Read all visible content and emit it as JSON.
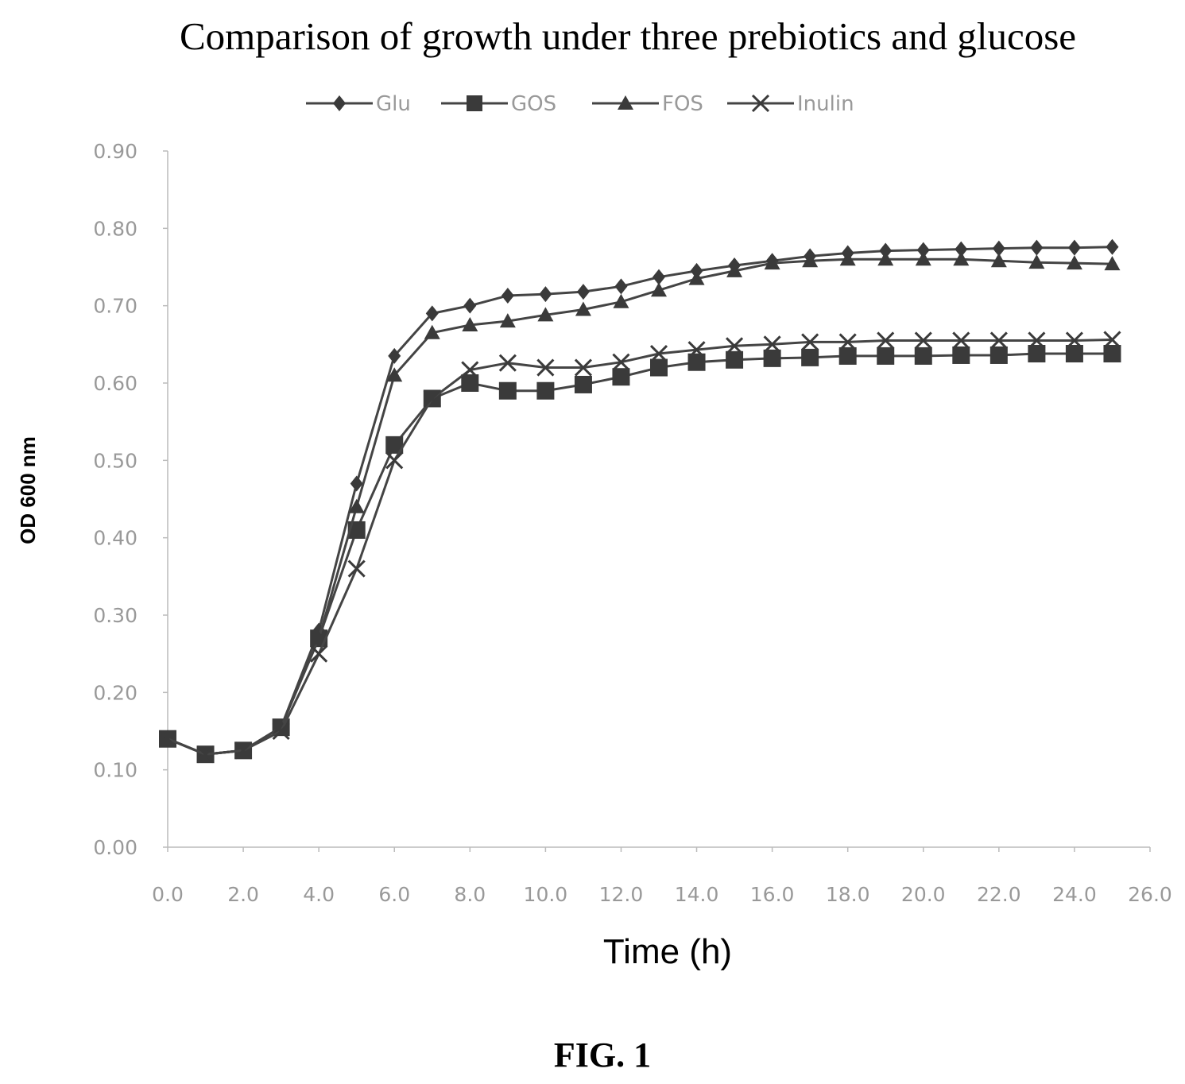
{
  "chart_data": {
    "type": "line",
    "title": "Comparison of growth under three prebiotics and glucose",
    "xlabel": "Time (h)",
    "ylabel": "OD 600 nm",
    "xlim": [
      0,
      26
    ],
    "ylim": [
      0,
      0.9
    ],
    "x_ticks": [
      "0.0",
      "2.0",
      "4.0",
      "6.0",
      "8.0",
      "10.0",
      "12.0",
      "14.0",
      "16.0",
      "18.0",
      "20.0",
      "22.0",
      "24.0",
      "26.0"
    ],
    "y_ticks": [
      "0.00",
      "0.10",
      "0.20",
      "0.30",
      "0.40",
      "0.50",
      "0.60",
      "0.70",
      "0.80",
      "0.90"
    ],
    "grid": false,
    "legend_position": "top",
    "x": [
      0,
      1,
      2,
      3,
      4,
      5,
      6,
      7,
      8,
      9,
      10,
      11,
      12,
      13,
      14,
      15,
      16,
      17,
      18,
      19,
      20,
      21,
      22,
      23,
      24,
      25
    ],
    "series": [
      {
        "name": "Glu",
        "marker": "diamond",
        "values": [
          0.14,
          0.12,
          0.125,
          0.155,
          0.28,
          0.47,
          0.635,
          0.69,
          0.7,
          0.713,
          0.715,
          0.718,
          0.725,
          0.737,
          0.745,
          0.752,
          0.758,
          0.764,
          0.768,
          0.771,
          0.772,
          0.773,
          0.774,
          0.775,
          0.775,
          0.776
        ]
      },
      {
        "name": "GOS",
        "marker": "square",
        "values": [
          0.14,
          0.12,
          0.125,
          0.155,
          0.27,
          0.41,
          0.52,
          0.58,
          0.6,
          0.59,
          0.59,
          0.598,
          0.608,
          0.62,
          0.627,
          0.63,
          0.632,
          0.633,
          0.635,
          0.635,
          0.635,
          0.636,
          0.636,
          0.638,
          0.638,
          0.638
        ]
      },
      {
        "name": "FOS",
        "marker": "triangle",
        "values": [
          0.14,
          0.12,
          0.125,
          0.155,
          0.27,
          0.44,
          0.61,
          0.665,
          0.675,
          0.68,
          0.688,
          0.695,
          0.705,
          0.72,
          0.735,
          0.745,
          0.755,
          0.758,
          0.76,
          0.76,
          0.76,
          0.76,
          0.758,
          0.756,
          0.755,
          0.754
        ]
      },
      {
        "name": "Inulin",
        "marker": "x",
        "values": [
          0.14,
          0.12,
          0.125,
          0.15,
          0.25,
          0.36,
          0.5,
          0.58,
          0.617,
          0.626,
          0.62,
          0.62,
          0.627,
          0.638,
          0.643,
          0.648,
          0.65,
          0.653,
          0.653,
          0.655,
          0.655,
          0.655,
          0.655,
          0.655,
          0.655,
          0.656
        ]
      }
    ],
    "line_color": "#444444",
    "marker_color": "#3a3a3a",
    "axis_color": "#bbbbbb",
    "tick_color": "#999999"
  },
  "figure": {
    "caption": "FIG. 1"
  }
}
